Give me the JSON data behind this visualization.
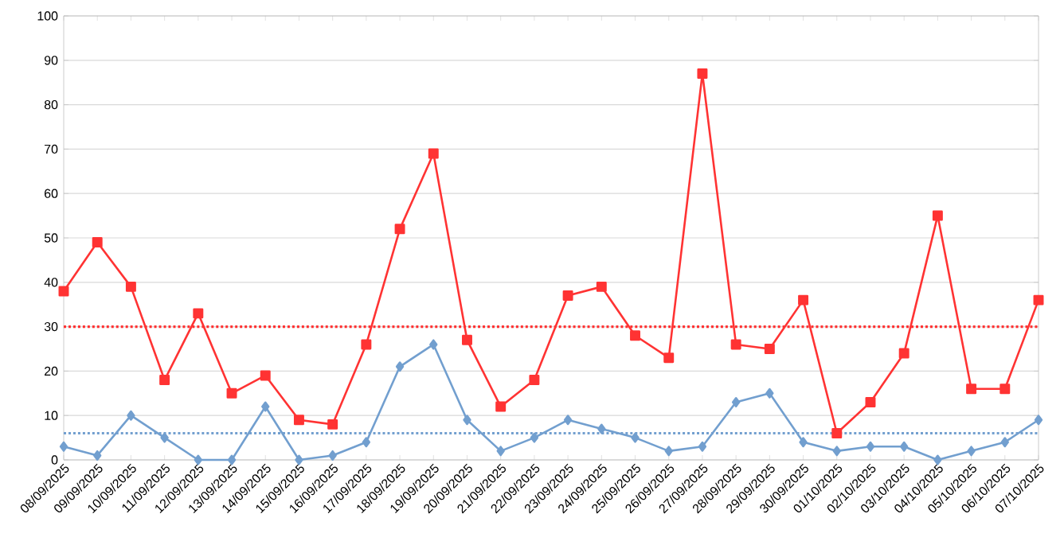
{
  "chart_data": {
    "type": "line",
    "categories": [
      "08/09/2025",
      "09/09/2025",
      "10/09/2025",
      "11/09/2025",
      "12/09/2025",
      "13/09/2025",
      "14/09/2025",
      "15/09/2025",
      "16/09/2025",
      "17/09/2025",
      "18/09/2025",
      "19/09/2025",
      "20/09/2025",
      "21/09/2025",
      "22/09/2025",
      "23/09/2025",
      "24/09/2025",
      "25/09/2025",
      "26/09/2025",
      "27/09/2025",
      "28/09/2025",
      "29/09/2025",
      "30/09/2025",
      "01/10/2025",
      "02/10/2025",
      "03/10/2025",
      "04/10/2025",
      "05/10/2025",
      "06/10/2025",
      "07/10/2025"
    ],
    "series": [
      {
        "color": "#ff3333",
        "marker": "square",
        "values": [
          38,
          49,
          39,
          18,
          33,
          15,
          19,
          9,
          8,
          26,
          52,
          69,
          27,
          12,
          18,
          37,
          39,
          28,
          23,
          87,
          26,
          25,
          36,
          6,
          13,
          24,
          55,
          16,
          16,
          36
        ]
      },
      {
        "color": "#729fcf",
        "marker": "diamond",
        "values": [
          3,
          1,
          10,
          5,
          0,
          0,
          12,
          0,
          1,
          4,
          21,
          26,
          9,
          2,
          5,
          9,
          7,
          5,
          2,
          3,
          13,
          15,
          4,
          2,
          3,
          3,
          0,
          2,
          4,
          9
        ]
      }
    ],
    "ylim": [
      0,
      100
    ],
    "yticks": [
      0,
      10,
      20,
      30,
      40,
      50,
      60,
      70,
      80,
      90,
      100
    ],
    "grid": "y",
    "ref_lines": [
      {
        "axis": "y",
        "value": 30,
        "color": "#ff3333",
        "line_style": "dotted"
      },
      {
        "axis": "y",
        "value": 6,
        "color": "#729fcf",
        "line_style": "dotted"
      }
    ]
  }
}
